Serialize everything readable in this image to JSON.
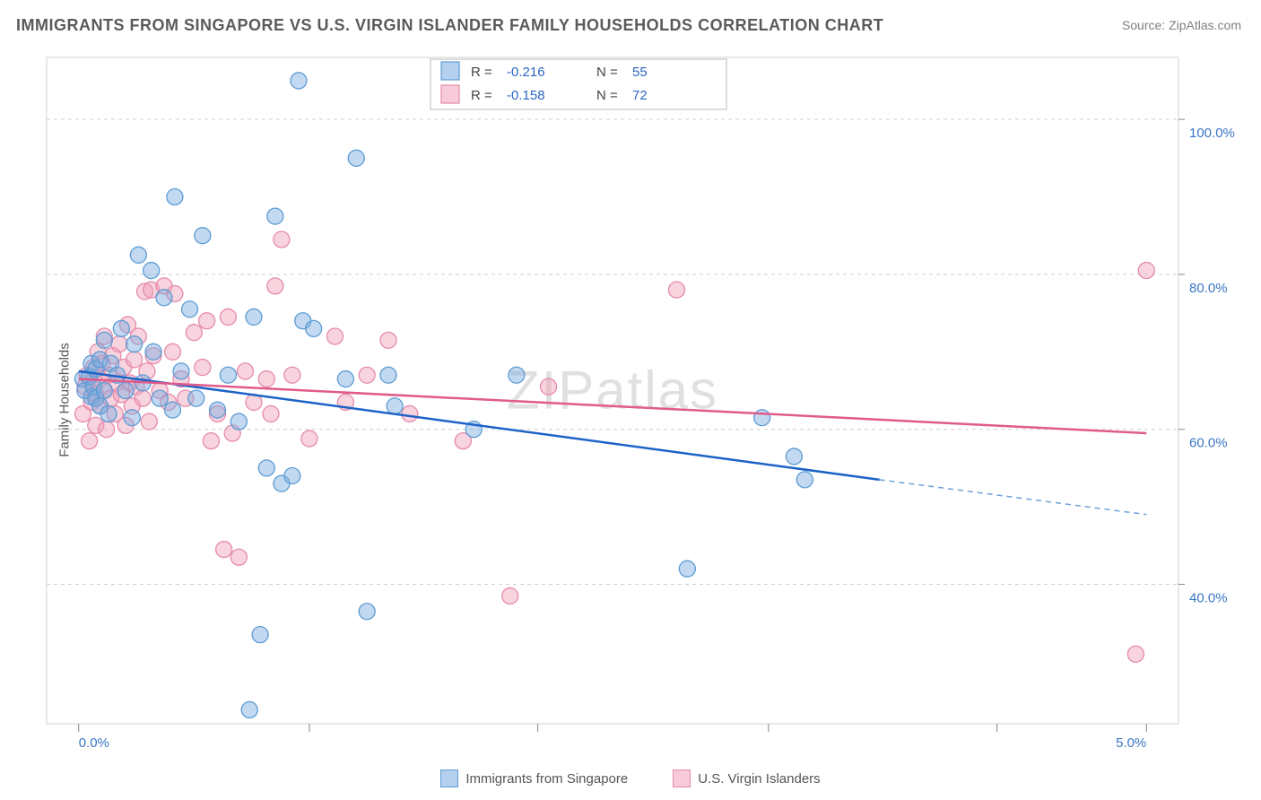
{
  "title": "IMMIGRANTS FROM SINGAPORE VS U.S. VIRGIN ISLANDER FAMILY HOUSEHOLDS CORRELATION CHART",
  "source_prefix": "Source: ",
  "source_name": "ZipAtlas.com",
  "y_axis_title": "Family Households",
  "watermark": "ZIPatlas",
  "chart": {
    "type": "scatter",
    "background_color": "#ffffff",
    "grid_color": "#d0d0d0",
    "grid_dash": "4 4",
    "xlim": [
      -0.15,
      5.15
    ],
    "ylim": [
      22,
      108
    ],
    "x_ticks_major": [
      0.0,
      5.0
    ],
    "x_ticks_minor": [
      1.08,
      2.15,
      3.23,
      4.3
    ],
    "x_tick_labels": [
      "0.0%",
      "5.0%"
    ],
    "y_ticks": [
      40,
      60,
      80,
      100
    ],
    "y_tick_labels": [
      "40.0%",
      "60.0%",
      "80.0%",
      "100.0%"
    ],
    "marker_radius": 9,
    "label_fontsize": 15,
    "tick_label_color": "#3a75c4",
    "series": [
      {
        "key": "blue",
        "label": "Immigrants from Singapore",
        "R": "-0.216",
        "N": "55",
        "fill": "rgba(120,170,225,0.45)",
        "stroke": "#5d9cd4",
        "trend_color": "#1d63c7",
        "trend_dash_color": "#6fa0d9",
        "trend": {
          "x1": 0.0,
          "y1": 67.5,
          "x2": 3.75,
          "y2": 53.5,
          "x_dash_end": 5.0,
          "y_dash_end": 49.0
        },
        "points": [
          [
            0.02,
            66.5
          ],
          [
            0.03,
            65.0
          ],
          [
            0.05,
            66.8
          ],
          [
            0.06,
            64.2
          ],
          [
            0.06,
            68.5
          ],
          [
            0.07,
            65.5
          ],
          [
            0.08,
            67.8
          ],
          [
            0.08,
            64.0
          ],
          [
            0.1,
            63.0
          ],
          [
            0.1,
            69.0
          ],
          [
            0.12,
            65.0
          ],
          [
            0.12,
            71.5
          ],
          [
            0.14,
            62.0
          ],
          [
            0.15,
            68.5
          ],
          [
            0.18,
            67.0
          ],
          [
            0.2,
            73.0
          ],
          [
            0.22,
            65.0
          ],
          [
            0.25,
            61.5
          ],
          [
            0.26,
            71.0
          ],
          [
            0.28,
            82.5
          ],
          [
            0.3,
            66.0
          ],
          [
            0.34,
            80.5
          ],
          [
            0.35,
            70.0
          ],
          [
            0.38,
            64.0
          ],
          [
            0.4,
            77.0
          ],
          [
            0.44,
            62.5
          ],
          [
            0.45,
            90.0
          ],
          [
            0.48,
            67.5
          ],
          [
            0.52,
            75.5
          ],
          [
            0.55,
            64.0
          ],
          [
            0.58,
            85.0
          ],
          [
            0.65,
            62.5
          ],
          [
            0.7,
            67.0
          ],
          [
            0.75,
            61.0
          ],
          [
            0.8,
            23.8
          ],
          [
            0.82,
            74.5
          ],
          [
            0.85,
            33.5
          ],
          [
            0.88,
            55.0
          ],
          [
            0.92,
            87.5
          ],
          [
            0.95,
            53.0
          ],
          [
            1.0,
            54.0
          ],
          [
            1.03,
            105.0
          ],
          [
            1.05,
            74.0
          ],
          [
            1.1,
            73.0
          ],
          [
            1.25,
            66.5
          ],
          [
            1.3,
            95.0
          ],
          [
            1.35,
            36.5
          ],
          [
            1.45,
            67.0
          ],
          [
            1.48,
            63.0
          ],
          [
            1.85,
            60.0
          ],
          [
            2.05,
            67.0
          ],
          [
            2.85,
            42.0
          ],
          [
            3.2,
            61.5
          ],
          [
            3.35,
            56.5
          ],
          [
            3.4,
            53.5
          ]
        ]
      },
      {
        "key": "pink",
        "label": "U.S. Virgin Islanders",
        "R": "-0.158",
        "N": "72",
        "fill": "rgba(240,160,185,0.45)",
        "stroke": "#e68aaa",
        "trend_color": "#e05b8a",
        "trend": {
          "x1": 0.0,
          "y1": 66.5,
          "x2": 5.0,
          "y2": 59.5
        },
        "points": [
          [
            0.02,
            62.0
          ],
          [
            0.03,
            65.5
          ],
          [
            0.04,
            67.0
          ],
          [
            0.05,
            58.5
          ],
          [
            0.06,
            66.0
          ],
          [
            0.06,
            63.5
          ],
          [
            0.07,
            68.0
          ],
          [
            0.08,
            64.5
          ],
          [
            0.08,
            60.5
          ],
          [
            0.09,
            70.0
          ],
          [
            0.1,
            66.5
          ],
          [
            0.1,
            63.0
          ],
          [
            0.11,
            68.5
          ],
          [
            0.12,
            65.0
          ],
          [
            0.12,
            72.0
          ],
          [
            0.13,
            60.0
          ],
          [
            0.14,
            67.0
          ],
          [
            0.15,
            64.0
          ],
          [
            0.16,
            69.5
          ],
          [
            0.17,
            62.0
          ],
          [
            0.18,
            66.0
          ],
          [
            0.19,
            71.0
          ],
          [
            0.2,
            64.5
          ],
          [
            0.21,
            68.0
          ],
          [
            0.22,
            60.5
          ],
          [
            0.23,
            73.5
          ],
          [
            0.24,
            66.0
          ],
          [
            0.25,
            63.0
          ],
          [
            0.26,
            69.0
          ],
          [
            0.27,
            65.5
          ],
          [
            0.28,
            72.0
          ],
          [
            0.3,
            64.0
          ],
          [
            0.31,
            77.8
          ],
          [
            0.32,
            67.5
          ],
          [
            0.33,
            61.0
          ],
          [
            0.34,
            78.0
          ],
          [
            0.35,
            69.5
          ],
          [
            0.38,
            65.0
          ],
          [
            0.4,
            78.5
          ],
          [
            0.42,
            63.5
          ],
          [
            0.44,
            70.0
          ],
          [
            0.45,
            77.5
          ],
          [
            0.48,
            66.5
          ],
          [
            0.5,
            64.0
          ],
          [
            0.54,
            72.5
          ],
          [
            0.58,
            68.0
          ],
          [
            0.6,
            74.0
          ],
          [
            0.62,
            58.5
          ],
          [
            0.65,
            62.0
          ],
          [
            0.68,
            44.5
          ],
          [
            0.7,
            74.5
          ],
          [
            0.72,
            59.5
          ],
          [
            0.75,
            43.5
          ],
          [
            0.78,
            67.5
          ],
          [
            0.82,
            63.5
          ],
          [
            0.88,
            66.5
          ],
          [
            0.9,
            62.0
          ],
          [
            0.92,
            78.5
          ],
          [
            0.95,
            84.5
          ],
          [
            1.0,
            67.0
          ],
          [
            1.08,
            58.8
          ],
          [
            1.2,
            72.0
          ],
          [
            1.25,
            63.5
          ],
          [
            1.35,
            67.0
          ],
          [
            1.45,
            71.5
          ],
          [
            1.55,
            62.0
          ],
          [
            1.8,
            58.5
          ],
          [
            2.02,
            38.5
          ],
          [
            2.2,
            65.5
          ],
          [
            2.8,
            78.0
          ],
          [
            5.0,
            80.5
          ],
          [
            4.95,
            31.0
          ]
        ]
      }
    ]
  },
  "legend_top": {
    "R_label": "R = ",
    "N_label": "N = "
  },
  "bottom_legend": {
    "items": [
      {
        "key": "blue",
        "label": "Immigrants from Singapore",
        "fill": "rgba(120,170,225,0.55)",
        "border": "#5d9cd4"
      },
      {
        "key": "pink",
        "label": "U.S. Virgin Islanders",
        "fill": "rgba(240,160,185,0.55)",
        "border": "#e68aaa"
      }
    ]
  }
}
